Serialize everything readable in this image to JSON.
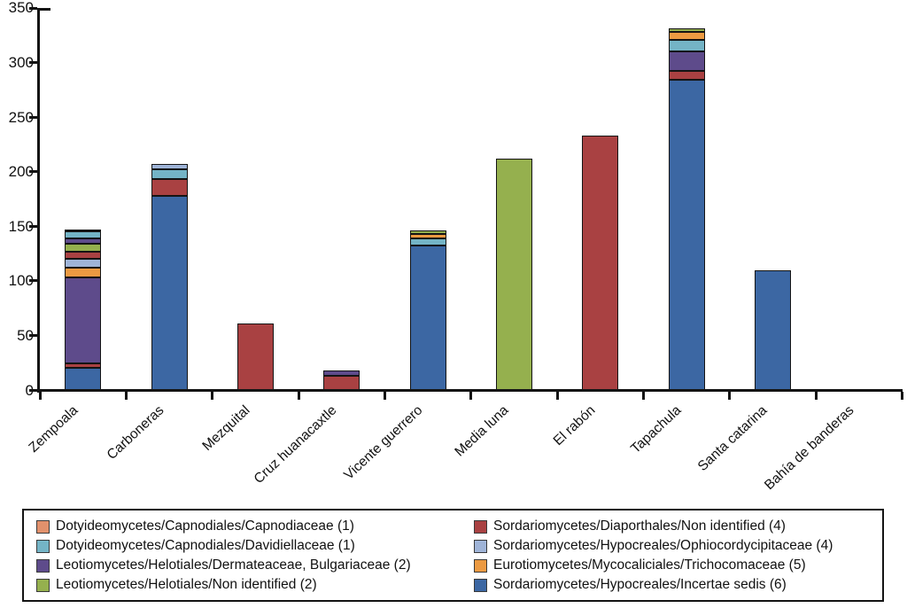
{
  "figure": {
    "background": "#ffffff"
  },
  "chart_data": {
    "type": "bar",
    "stacked": true,
    "title": "",
    "xlabel": "",
    "ylabel": "",
    "ylim": [
      0,
      350
    ],
    "yticks": [
      0,
      50,
      100,
      150,
      200,
      250,
      300,
      350
    ],
    "grid": false,
    "legend_position": "bottom-box-two-columns",
    "categories": [
      "Zempoala",
      "Carboneras",
      "Mezquital",
      "Cruz huanacaxtle",
      "Vicente guerrero",
      "Media luna",
      "El rabón",
      "Tapachula",
      "Santa catarina",
      "Bahía de banderas"
    ],
    "taxa": [
      {
        "key": "capnodiaceae",
        "label": "Dotyideomycetes/Capnodiales/Capnodiaceae (1)",
        "color": "#E2916C"
      },
      {
        "key": "davidiellaceae",
        "label": "Dotyideomycetes/Capnodiales/Davidiellaceae (1)",
        "color": "#74B4C6"
      },
      {
        "key": "dermateaceae",
        "label": "Leotiomycetes/Helotiales/Dermateaceae, Bulgariaceae (2)",
        "color": "#5E4B8B"
      },
      {
        "key": "helotiales_ni",
        "label": "Leotiomycetes/Helotiales/Non identified (2)",
        "color": "#95B04E"
      },
      {
        "key": "diaporthales",
        "label": "Sordariomycetes/Diaporthales/Non identified (4)",
        "color": "#A94142"
      },
      {
        "key": "ophiocordycipitaceae",
        "label": "Sordariomycetes/Hypocreales/Ophiocordycipitaceae (4)",
        "color": "#9FB4D8"
      },
      {
        "key": "trichocomaceae",
        "label": "Eurotiomycetes/Mycocaliciales/Trichocomaceae (5)",
        "color": "#EC9A42"
      },
      {
        "key": "incertae_sedis",
        "label": "Sordariomycetes/Hypocreales/Incertae sedis (6)",
        "color": "#3C67A3"
      }
    ],
    "bars": [
      {
        "category": "Zempoala",
        "total": 147,
        "segments": [
          [
            "incertae_sedis",
            20
          ],
          [
            "diaporthales",
            4
          ],
          [
            "dermateaceae",
            79
          ],
          [
            "trichocomaceae",
            9
          ],
          [
            "ophiocordycipitaceae",
            8
          ],
          [
            "diaporthales",
            7
          ],
          [
            "helotiales_ni",
            7
          ],
          [
            "dermateaceae",
            5
          ],
          [
            "davidiellaceae",
            6
          ],
          [
            "capnodiaceae",
            2
          ]
        ]
      },
      {
        "category": "Carboneras",
        "total": 207,
        "segments": [
          [
            "incertae_sedis",
            178
          ],
          [
            "diaporthales",
            15
          ],
          [
            "davidiellaceae",
            9
          ],
          [
            "ophiocordycipitaceae",
            5
          ]
        ]
      },
      {
        "category": "Mezquital",
        "total": 61,
        "segments": [
          [
            "diaporthales",
            61
          ]
        ]
      },
      {
        "category": "Cruz huanacaxtle",
        "total": 18,
        "segments": [
          [
            "diaporthales",
            13
          ],
          [
            "dermateaceae",
            5
          ]
        ]
      },
      {
        "category": "Vicente guerrero",
        "total": 146,
        "segments": [
          [
            "incertae_sedis",
            132
          ],
          [
            "davidiellaceae",
            7
          ],
          [
            "trichocomaceae",
            4
          ],
          [
            "helotiales_ni",
            3
          ]
        ]
      },
      {
        "category": "Media luna",
        "total": 212,
        "segments": [
          [
            "helotiales_ni",
            212
          ]
        ]
      },
      {
        "category": "El rabón",
        "total": 233,
        "segments": [
          [
            "diaporthales",
            233
          ]
        ]
      },
      {
        "category": "Tapachula",
        "total": 331,
        "segments": [
          [
            "incertae_sedis",
            284
          ],
          [
            "diaporthales",
            8
          ],
          [
            "dermateaceae",
            18
          ],
          [
            "davidiellaceae",
            11
          ],
          [
            "trichocomaceae",
            7
          ],
          [
            "helotiales_ni",
            3
          ]
        ]
      },
      {
        "category": "Santa catarina",
        "total": 110,
        "segments": [
          [
            "incertae_sedis",
            110
          ]
        ]
      },
      {
        "category": "Bahía de banderas",
        "total": 0,
        "segments": []
      }
    ]
  }
}
